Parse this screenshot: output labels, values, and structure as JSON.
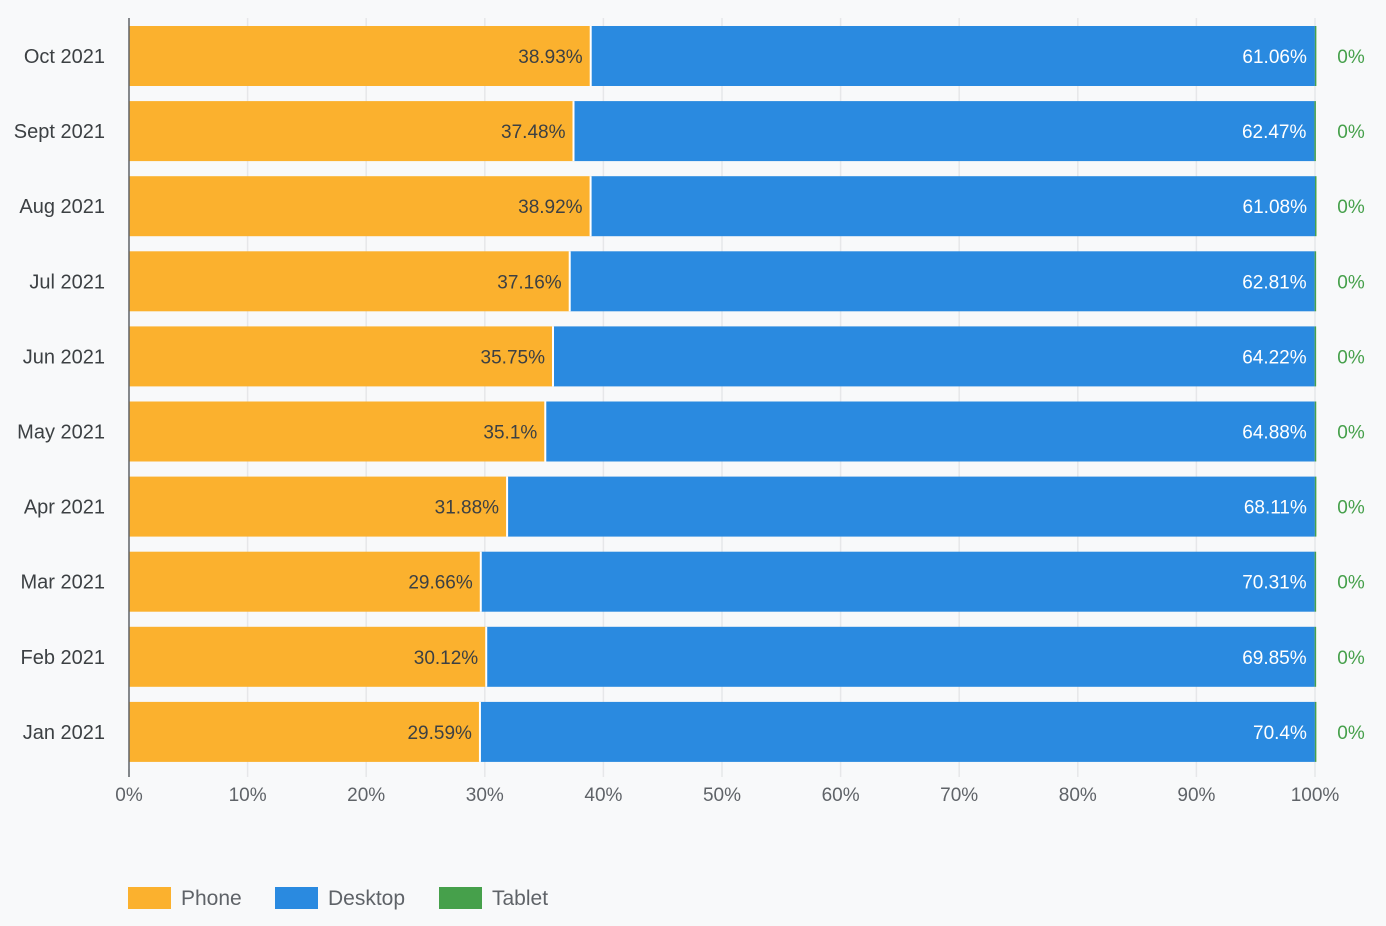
{
  "chart_data": {
    "type": "bar",
    "orientation": "horizontal",
    "stacked": true,
    "categories": [
      "Oct 2021",
      "Sept 2021",
      "Aug 2021",
      "Jul 2021",
      "Jun 2021",
      "May 2021",
      "Apr 2021",
      "Mar 2021",
      "Feb 2021",
      "Jan 2021"
    ],
    "series": [
      {
        "name": "Phone",
        "color": "#fbb12e",
        "values": [
          38.93,
          37.48,
          38.92,
          37.16,
          35.75,
          35.1,
          31.88,
          29.66,
          30.12,
          29.59
        ],
        "labels": [
          "38.93%",
          "37.48%",
          "38.92%",
          "37.16%",
          "35.75%",
          "35.1%",
          "31.88%",
          "29.66%",
          "30.12%",
          "29.59%"
        ]
      },
      {
        "name": "Desktop",
        "color": "#2a8ae0",
        "values": [
          61.06,
          62.47,
          61.08,
          62.81,
          64.22,
          64.88,
          68.11,
          70.31,
          69.85,
          70.4
        ],
        "labels": [
          "61.06%",
          "62.47%",
          "61.08%",
          "62.81%",
          "64.22%",
          "64.88%",
          "68.11%",
          "70.31%",
          "69.85%",
          "70.4%"
        ]
      },
      {
        "name": "Tablet",
        "color": "#46a04b",
        "values": [
          0,
          0,
          0,
          0,
          0,
          0,
          0,
          0,
          0,
          0
        ],
        "labels": [
          "0%",
          "0%",
          "0%",
          "0%",
          "0%",
          "0%",
          "0%",
          "0%",
          "0%",
          "0%"
        ]
      }
    ],
    "xlim": [
      0,
      100
    ],
    "xticks": [
      "0%",
      "10%",
      "20%",
      "30%",
      "40%",
      "50%",
      "60%",
      "70%",
      "80%",
      "90%",
      "100%"
    ],
    "grid": true,
    "legend": "bottom-left"
  }
}
